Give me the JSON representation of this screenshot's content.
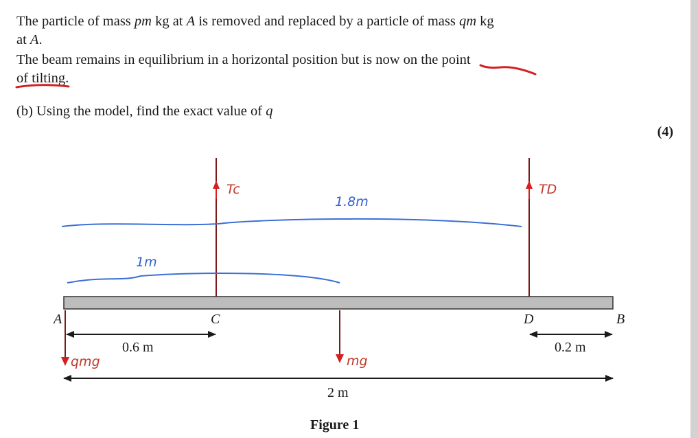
{
  "text": {
    "line1_a": "The particle of mass ",
    "line1_b": "pm",
    "line1_c": " kg at ",
    "line1_d": "A",
    "line1_e": " is removed and replaced by a particle of mass ",
    "line1_f": "qm",
    "line1_g": " kg",
    "line2_a": "at ",
    "line2_b": "A",
    "line2_c": ".",
    "line3": "The beam remains in equilibrium in a horizontal position but is now on the point",
    "line4": "of tilting.",
    "part_b_a": "(b) Using the model, find the exact value of ",
    "part_b_b": "q",
    "marks": "(4)"
  },
  "figure": {
    "caption": "Figure 1",
    "points": {
      "A": "A",
      "C": "C",
      "D": "D",
      "B": "B"
    },
    "dims": {
      "ac": "0.6 m",
      "db": "0.2 m",
      "ab": "2 m"
    },
    "handwritten": {
      "tc": "Tc",
      "td": "TD",
      "d18": "1.8m",
      "d1": "1m",
      "qmg": "qmg",
      "mg": "mg"
    }
  },
  "colors": {
    "beam_fill": "#bdbdbd",
    "string": "#7a1a1a",
    "annotation_red": "#d42020",
    "annotation_blue": "#2f5fd0"
  }
}
